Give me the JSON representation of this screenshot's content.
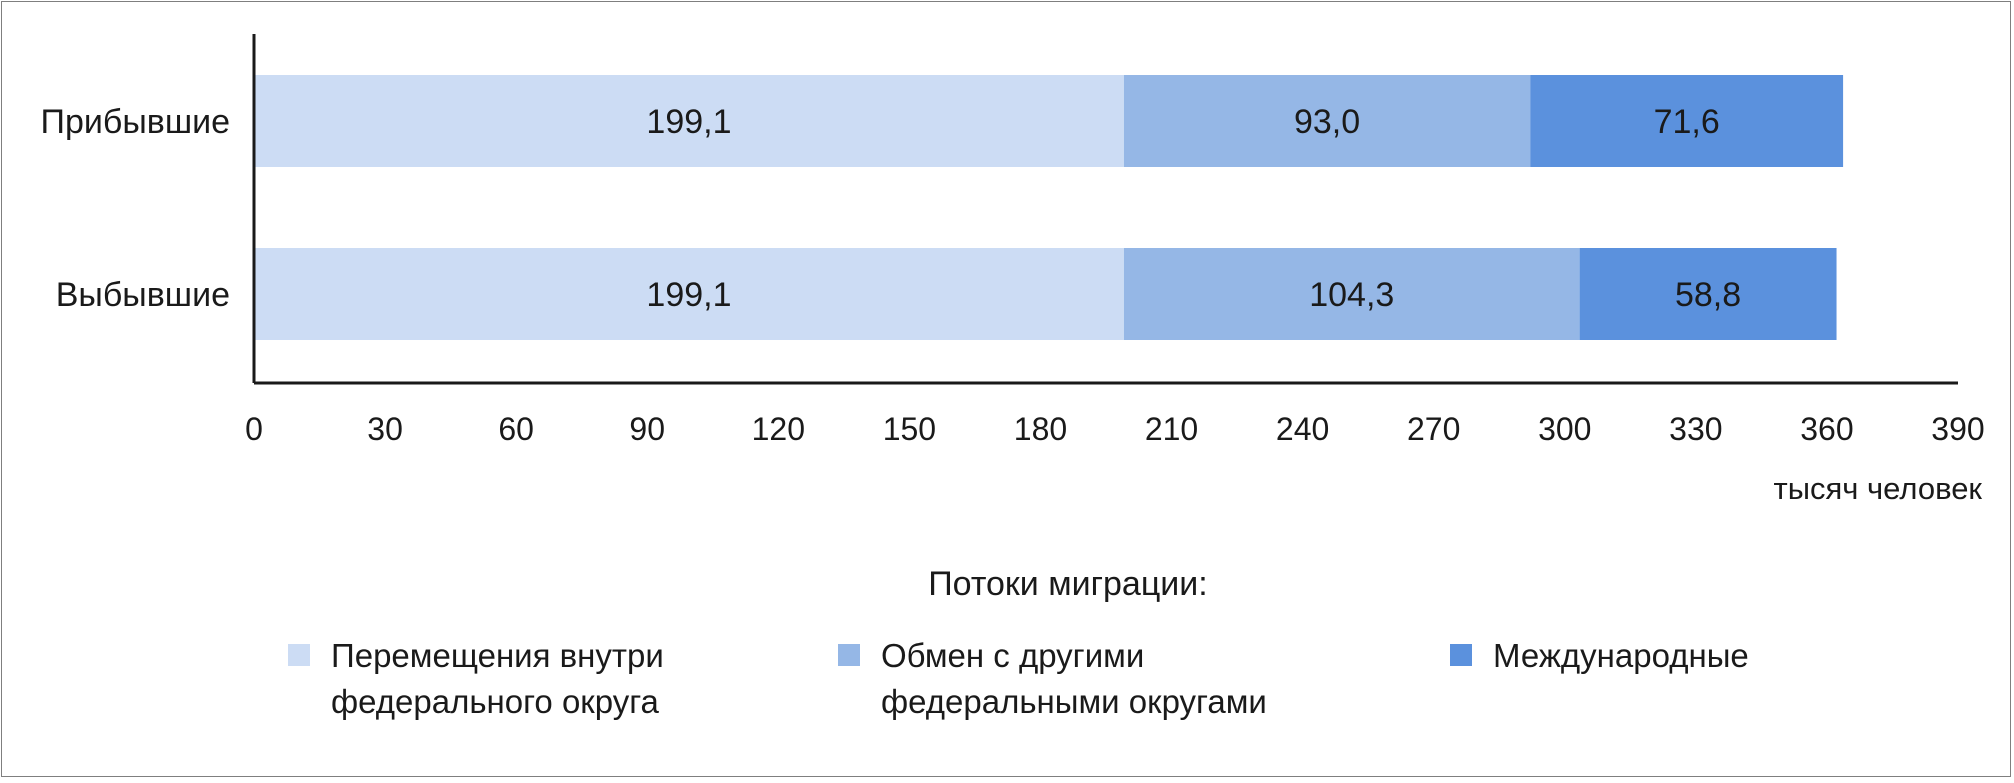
{
  "chart_data": {
    "type": "bar",
    "orientation": "horizontal",
    "stacked": true,
    "categories": [
      "Прибывшие",
      "Выбывшие"
    ],
    "series": [
      {
        "name": "Перемещения внутри федерального округа",
        "name_lines": [
          "Перемещения внутри",
          "федерального округа"
        ],
        "values": [
          199.1,
          199.1
        ],
        "labels": [
          "199,1",
          "199,1"
        ],
        "color": "#ccdcf4"
      },
      {
        "name": "Обмен с другими федеральными округами",
        "name_lines": [
          "Обмен с другими",
          "федеральными округами"
        ],
        "values": [
          93.0,
          104.3
        ],
        "labels": [
          "93,0",
          "104,3"
        ],
        "color": "#95b7e6"
      },
      {
        "name": "Международные",
        "name_lines": [
          "Международные"
        ],
        "values": [
          71.6,
          58.8
        ],
        "labels": [
          "71,6",
          "58,8"
        ],
        "color": "#5b91dd"
      }
    ],
    "xticks": [
      "0",
      "30",
      "60",
      "90",
      "120",
      "150",
      "180",
      "210",
      "240",
      "270",
      "300",
      "330",
      "360",
      "390"
    ],
    "xlim": [
      0,
      390
    ],
    "xlabel": "тысяч человек",
    "legend_title": "Потоки миграции:",
    "legend_position": "bottom",
    "grid": false
  }
}
